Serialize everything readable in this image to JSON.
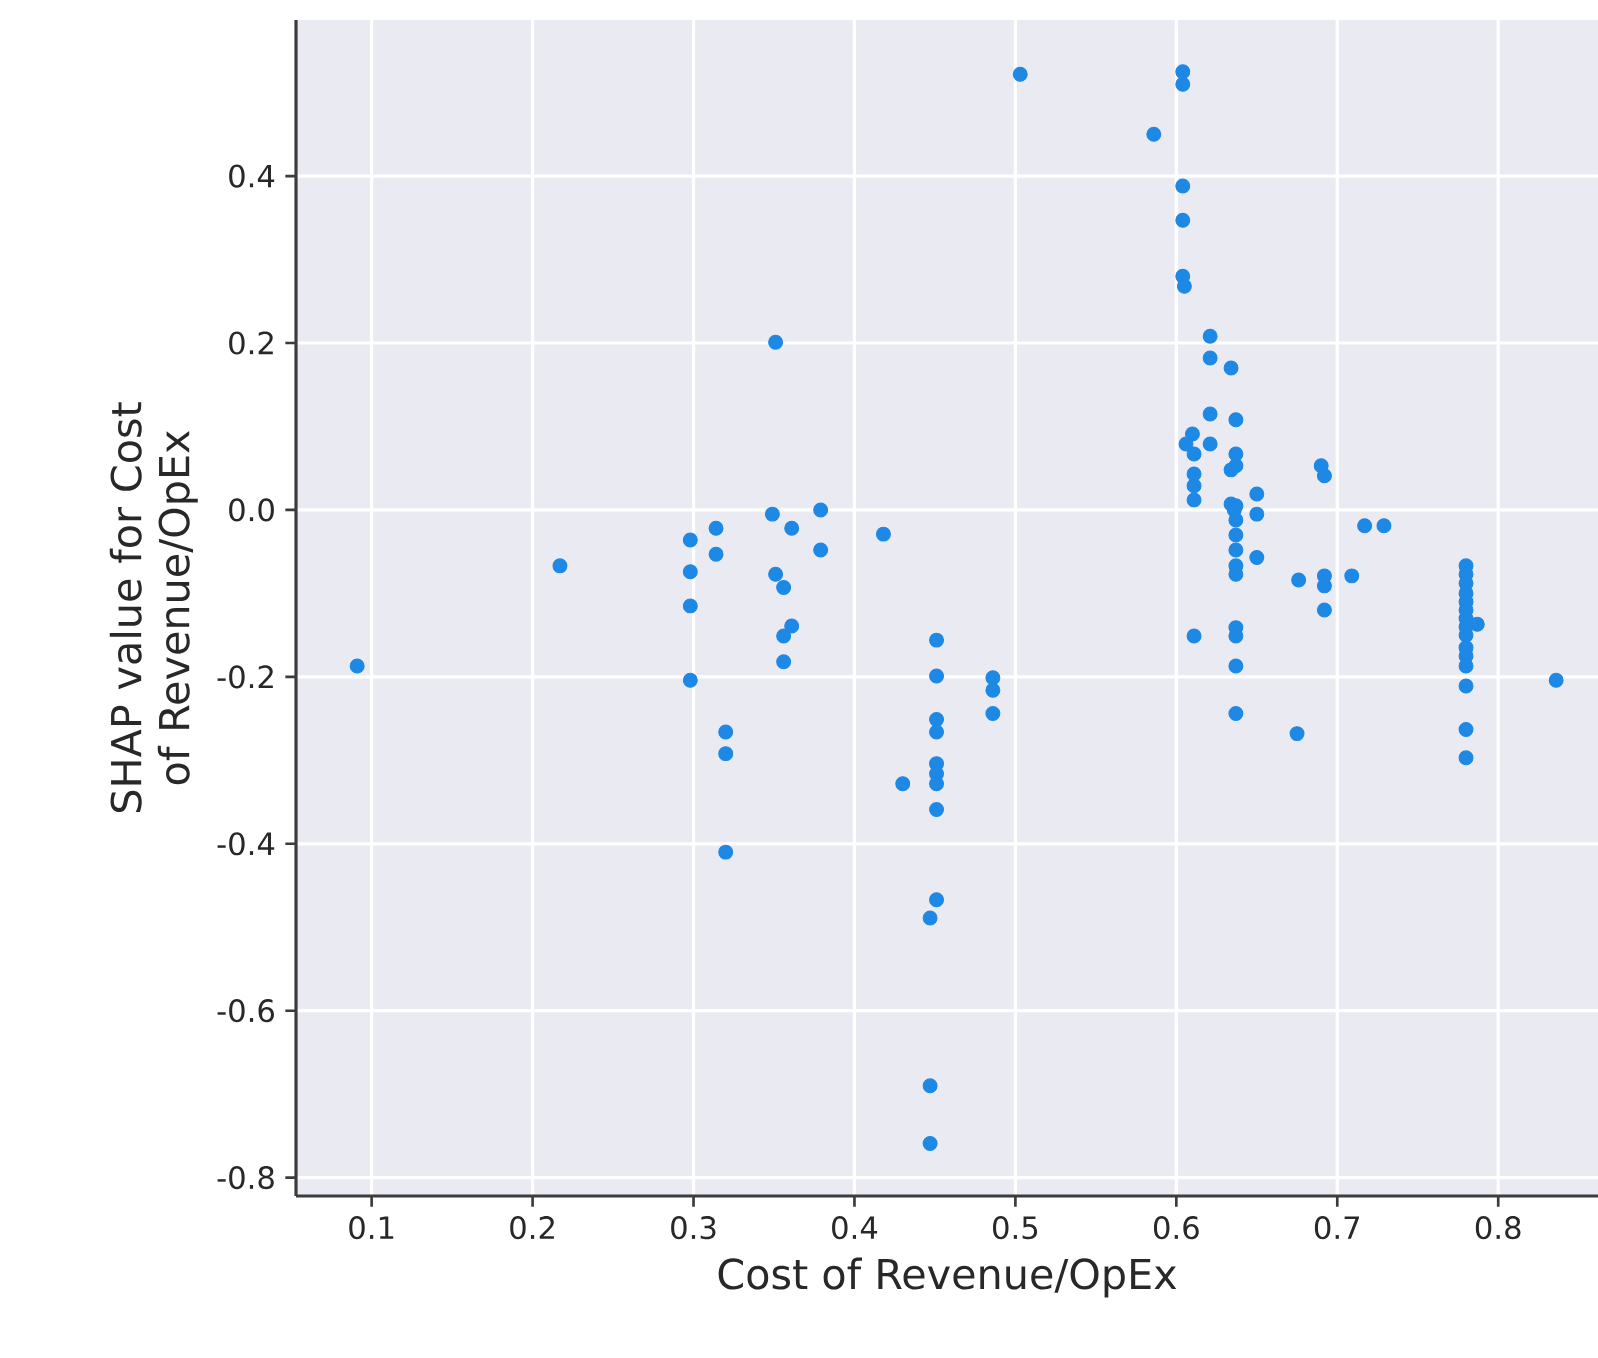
{
  "chart_data": {
    "type": "scatter",
    "xlabel": "Cost of Revenue/OpEx",
    "ylabel": "SHAP value for Cost of Revenue/OpEx",
    "grid": true,
    "xlim": [
      0.053,
      0.862
    ],
    "ylim": [
      -0.822,
      0.587
    ],
    "xticks": [
      0.1,
      0.2,
      0.3,
      0.4,
      0.5,
      0.6,
      0.7,
      0.8
    ],
    "yticks": [
      -0.8,
      -0.6,
      -0.4,
      -0.2,
      {
        "value": 0,
        "label": "0.0"
      },
      0.2,
      0.4
    ],
    "series": [
      {
        "color": "#1e88e5",
        "x": [
          0.091,
          0.217,
          0.298,
          0.314,
          0.298,
          0.314,
          0.298,
          0.298,
          0.32,
          0.32,
          0.32,
          0.351,
          0.349,
          0.361,
          0.379,
          0.379,
          0.351,
          0.356,
          0.361,
          0.356,
          0.356,
          0.418,
          0.451,
          0.451,
          0.451,
          0.451,
          0.451,
          0.451,
          0.451,
          0.451,
          0.43,
          0.486,
          0.486,
          0.486,
          0.451,
          0.447,
          0.447,
          0.447,
          0.503,
          0.604,
          0.604,
          0.586,
          0.604,
          0.604,
          0.604,
          0.605,
          0.621,
          0.621,
          0.634,
          0.621,
          0.637,
          0.61,
          0.606,
          0.621,
          0.611,
          0.637,
          0.611,
          0.611,
          0.611,
          0.634,
          0.637,
          0.69,
          0.692,
          0.634,
          0.637,
          0.65,
          0.65,
          0.717,
          0.729,
          0.636,
          0.637,
          0.637,
          0.637,
          0.637,
          0.65,
          0.637,
          0.676,
          0.692,
          0.692,
          0.692,
          0.709,
          0.611,
          0.637,
          0.637,
          0.637,
          0.637,
          0.675,
          0.78,
          0.78,
          0.78,
          0.78,
          0.78,
          0.78,
          0.78,
          0.78,
          0.78,
          0.78,
          0.78,
          0.78,
          0.787,
          0.78,
          0.78,
          0.78,
          0.836
        ],
        "values": [
          -0.187,
          -0.067,
          -0.036,
          -0.022,
          -0.074,
          -0.053,
          -0.115,
          -0.204,
          -0.266,
          -0.292,
          -0.41,
          0.201,
          -0.005,
          -0.022,
          0.0,
          -0.048,
          -0.077,
          -0.093,
          -0.139,
          -0.151,
          -0.182,
          -0.029,
          -0.156,
          -0.199,
          -0.251,
          -0.266,
          -0.304,
          -0.316,
          -0.328,
          -0.359,
          -0.328,
          -0.201,
          -0.216,
          -0.244,
          -0.467,
          -0.489,
          -0.69,
          -0.759,
          0.522,
          0.525,
          0.51,
          0.45,
          0.388,
          0.347,
          0.28,
          0.268,
          0.208,
          0.182,
          0.17,
          0.115,
          0.108,
          0.091,
          0.079,
          0.079,
          0.067,
          0.067,
          0.043,
          0.029,
          0.012,
          0.048,
          0.053,
          0.053,
          0.041,
          0.007,
          0.005,
          0.019,
          -0.005,
          -0.019,
          -0.019,
          0.0,
          -0.012,
          -0.03,
          -0.048,
          -0.067,
          -0.057,
          -0.077,
          -0.084,
          -0.079,
          -0.091,
          -0.12,
          -0.079,
          -0.151,
          -0.141,
          -0.151,
          -0.187,
          -0.244,
          -0.268,
          -0.067,
          -0.077,
          -0.088,
          -0.1,
          -0.11,
          -0.12,
          -0.13,
          -0.14,
          -0.15,
          -0.165,
          -0.175,
          -0.187,
          -0.137,
          -0.211,
          -0.263,
          -0.297,
          -0.204
        ]
      }
    ]
  }
}
